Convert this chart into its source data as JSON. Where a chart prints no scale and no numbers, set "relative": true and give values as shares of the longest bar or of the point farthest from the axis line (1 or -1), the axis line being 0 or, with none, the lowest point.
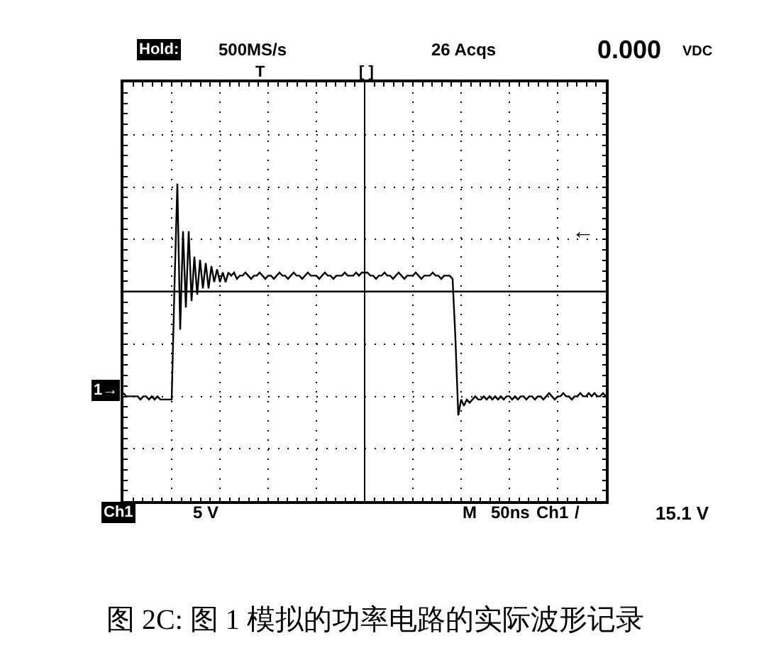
{
  "chart_data": {
    "type": "line",
    "relative": true,
    "categories": [
      null,
      null,
      null,
      null,
      null,
      null,
      null,
      null,
      null,
      null,
      null,
      null,
      null,
      null,
      null,
      null,
      null,
      null,
      null,
      null,
      null,
      null,
      null,
      null,
      null,
      null,
      null,
      null,
      null,
      null,
      null,
      null,
      null,
      null,
      null,
      null,
      null,
      null,
      null,
      null,
      null,
      null,
      null,
      null,
      null,
      null,
      null,
      null,
      null,
      null,
      null,
      null,
      null,
      null,
      null,
      null,
      null,
      null,
      null,
      null,
      null,
      null,
      null,
      null,
      null,
      null,
      null,
      null,
      null,
      null,
      null,
      null,
      null,
      null,
      null,
      null,
      null,
      null,
      null,
      null,
      null,
      null,
      null,
      null,
      null,
      null,
      null,
      null,
      null,
      null,
      null,
      null,
      null,
      null,
      null,
      null,
      null,
      null,
      null,
      null,
      null,
      null,
      null,
      null,
      null,
      null,
      null,
      null,
      null,
      null,
      null,
      null,
      null,
      null,
      null,
      null,
      null,
      null,
      null,
      null,
      null,
      null,
      null,
      null,
      null,
      null,
      null,
      null,
      null,
      null,
      null,
      null,
      null,
      null,
      null,
      null,
      null,
      null,
      null,
      null,
      null,
      null,
      null,
      null,
      null,
      null,
      null,
      null,
      null,
      null,
      null,
      null,
      null,
      null,
      null,
      null,
      null,
      null,
      null,
      null,
      null,
      null,
      null,
      null,
      null,
      null,
      null,
      null,
      null,
      null,
      null
    ],
    "series": [
      {
        "color": "#000000",
        "values": [
          0.34,
          0.33,
          0.33,
          0.33,
          0.33,
          0.33,
          0.32,
          0.33,
          0.33,
          0.32,
          0.33,
          0.32,
          0.33,
          0.32,
          0.32,
          0.32,
          0.32,
          0.32,
          0.68,
          1.0,
          0.54,
          0.85,
          0.61,
          0.85,
          0.63,
          0.77,
          0.65,
          0.76,
          0.67,
          0.75,
          0.67,
          0.74,
          0.69,
          0.73,
          0.69,
          0.72,
          0.69,
          0.72,
          0.71,
          0.72,
          0.7,
          0.71,
          0.71,
          0.72,
          0.71,
          0.7,
          0.71,
          0.71,
          0.72,
          0.71,
          0.7,
          0.71,
          0.71,
          0.7,
          0.71,
          0.72,
          0.71,
          0.71,
          0.7,
          0.71,
          0.72,
          0.71,
          0.71,
          0.7,
          0.71,
          0.72,
          0.71,
          0.71,
          0.71,
          0.7,
          0.71,
          0.72,
          0.71,
          0.71,
          0.7,
          0.71,
          0.71,
          0.71,
          0.72,
          0.71,
          0.71,
          0.71,
          0.72,
          0.71,
          0.72,
          0.72,
          0.72,
          0.71,
          0.71,
          0.7,
          0.71,
          0.71,
          0.72,
          0.71,
          0.71,
          0.7,
          0.71,
          0.72,
          0.71,
          0.7,
          0.71,
          0.71,
          0.71,
          0.72,
          0.71,
          0.7,
          0.71,
          0.71,
          0.71,
          0.72,
          0.71,
          0.71,
          0.7,
          0.71,
          0.71,
          0.71,
          0.7,
          0.51,
          0.27,
          0.32,
          0.3,
          0.32,
          0.31,
          0.32,
          0.33,
          0.32,
          0.32,
          0.33,
          0.32,
          0.33,
          0.32,
          0.33,
          0.32,
          0.33,
          0.32,
          0.33,
          0.33,
          0.32,
          0.33,
          0.32,
          0.33,
          0.33,
          0.32,
          0.33,
          0.33,
          0.32,
          0.33,
          0.33,
          0.32,
          0.33,
          0.34,
          0.33,
          0.32,
          0.33,
          0.33,
          0.34,
          0.33,
          0.33,
          0.32,
          0.33,
          0.33,
          0.34,
          0.33,
          0.33,
          0.34,
          0.33,
          0.34,
          0.33,
          0.33,
          0.34,
          0.33
        ]
      }
    ],
    "ref_lines": [
      {
        "axis": "y",
        "value": 0.66,
        "color": "#000000",
        "line_style": "solid"
      }
    ],
    "grid": true,
    "line_style": "solid",
    "tick_labels": false,
    "annotations": [
      "Hold:",
      "500MS/s",
      "26 Acqs",
      "0.000",
      "VDC",
      "T",
      "[ ]",
      "Ch1",
      "5 V",
      "M",
      "50ns",
      "Ch1",
      "/",
      "15.1 V",
      {
        "text": "1→",
        "y": 0.35
      },
      "←",
      "图 2C: 图 1 模拟的功率电路的实际波形记录"
    ]
  }
}
